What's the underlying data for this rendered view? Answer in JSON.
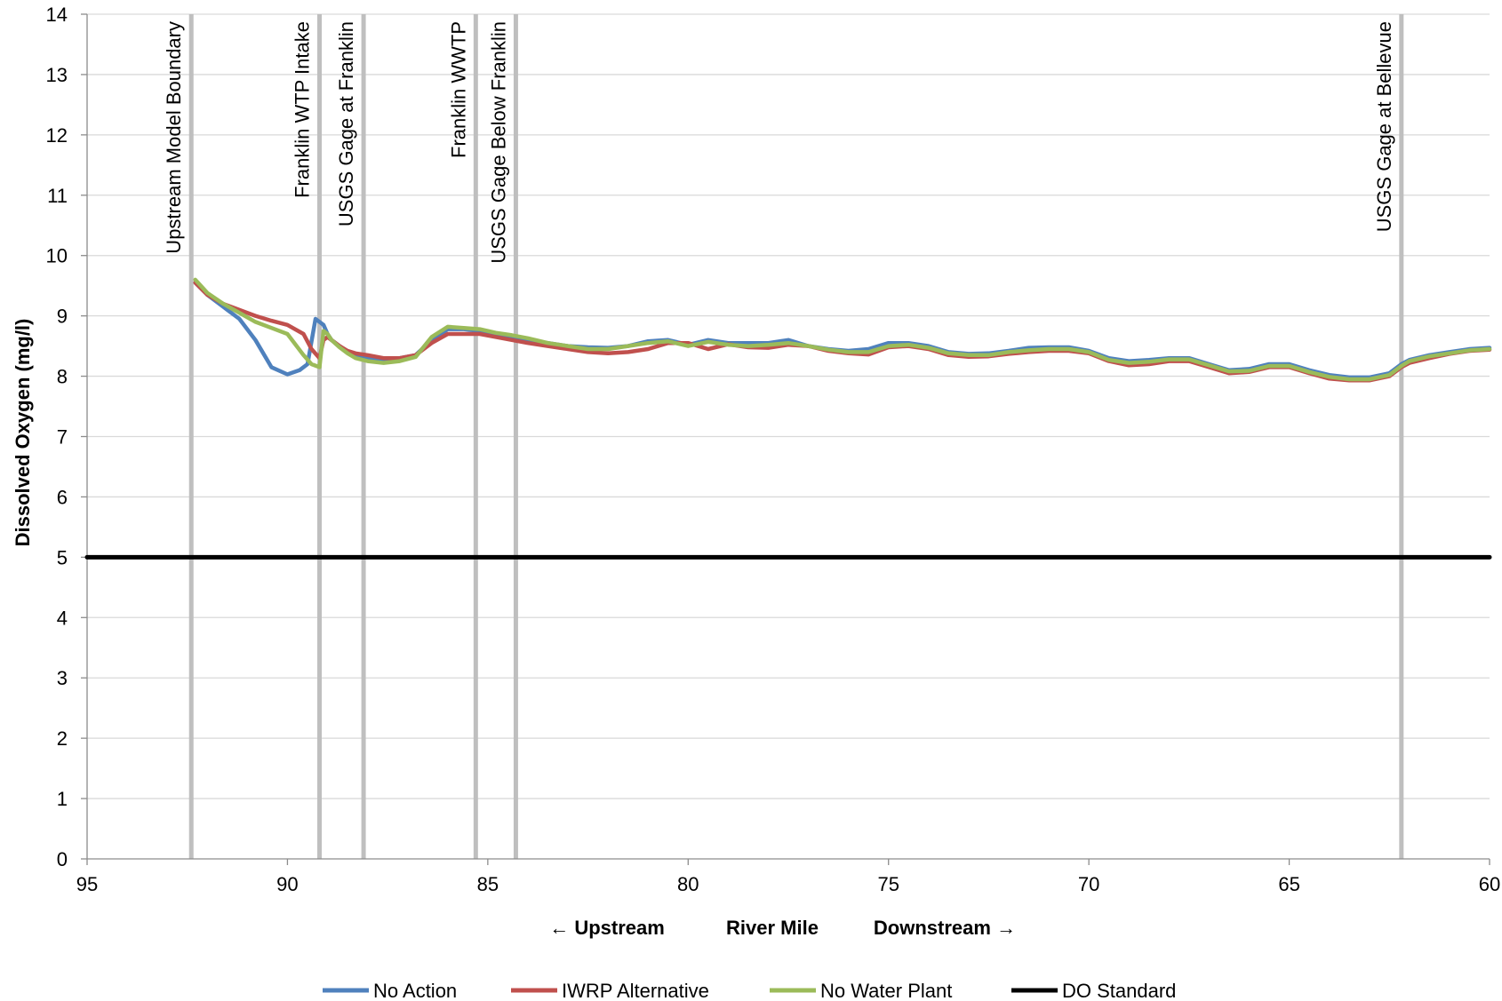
{
  "chart_data": {
    "type": "line",
    "ylabel": "Dissolved Oxygen (mg/l)",
    "xlabel_parts": [
      "← Upstream",
      "River Mile",
      "Downstream →"
    ],
    "xlim": [
      95,
      60
    ],
    "ylim": [
      0,
      14
    ],
    "x_ticks": [
      95,
      90,
      85,
      80,
      75,
      70,
      65,
      60
    ],
    "y_ticks": [
      0,
      1,
      2,
      3,
      4,
      5,
      6,
      7,
      8,
      9,
      10,
      11,
      12,
      13,
      14
    ],
    "grid": "horizontal",
    "legend_position": "bottom",
    "reference_lines": [
      {
        "label": "Upstream Model Boundary",
        "x": 92.4
      },
      {
        "label": "Franklin WTP Intake",
        "x": 89.2
      },
      {
        "label": "USGS Gage at Franklin",
        "x": 88.1
      },
      {
        "label": "Franklin WWTP",
        "x": 85.3
      },
      {
        "label": "USGS Gage Below Franklin",
        "x": 84.3
      },
      {
        "label": "USGS Gage at Bellevue",
        "x": 62.2
      }
    ],
    "series": [
      {
        "name": "No Action",
        "color": "#4f81bd",
        "x": [
          92.3,
          92.0,
          91.6,
          91.2,
          90.8,
          90.4,
          90.0,
          89.7,
          89.5,
          89.3,
          89.1,
          89.0,
          88.9,
          88.7,
          88.5,
          88.3,
          88.0,
          87.6,
          87.2,
          86.8,
          86.4,
          86.0,
          85.6,
          85.2,
          84.8,
          84.4,
          84.0,
          83.5,
          83.0,
          82.5,
          82.0,
          81.5,
          81.0,
          80.5,
          80.0,
          79.5,
          79.0,
          78.5,
          78.0,
          77.5,
          77.0,
          76.5,
          76.0,
          75.5,
          75.0,
          74.5,
          74.0,
          73.5,
          73.0,
          72.5,
          72.0,
          71.5,
          71.0,
          70.5,
          70.0,
          69.5,
          69.0,
          68.5,
          68.0,
          67.5,
          67.0,
          66.5,
          66.0,
          65.5,
          65.0,
          64.5,
          64.0,
          63.5,
          63.0,
          62.5,
          62.2,
          62.0,
          61.5,
          61.0,
          60.5,
          60.0
        ],
        "y": [
          9.55,
          9.35,
          9.15,
          8.95,
          8.6,
          8.15,
          8.03,
          8.1,
          8.2,
          8.95,
          8.85,
          8.7,
          8.6,
          8.5,
          8.4,
          8.35,
          8.3,
          8.28,
          8.3,
          8.35,
          8.6,
          8.78,
          8.78,
          8.75,
          8.7,
          8.65,
          8.6,
          8.55,
          8.5,
          8.48,
          8.47,
          8.5,
          8.58,
          8.6,
          8.52,
          8.6,
          8.55,
          8.55,
          8.55,
          8.6,
          8.5,
          8.45,
          8.42,
          8.45,
          8.55,
          8.55,
          8.5,
          8.4,
          8.37,
          8.38,
          8.42,
          8.47,
          8.48,
          8.48,
          8.42,
          8.3,
          8.25,
          8.27,
          8.3,
          8.3,
          8.2,
          8.1,
          8.12,
          8.2,
          8.2,
          8.1,
          8.02,
          7.98,
          7.98,
          8.05,
          8.2,
          8.27,
          8.35,
          8.4,
          8.45,
          8.47
        ]
      },
      {
        "name": "IWRP Alternative",
        "color": "#c0504d",
        "x": [
          92.3,
          92.0,
          91.6,
          91.2,
          90.8,
          90.4,
          90.0,
          89.6,
          89.4,
          89.2,
          89.1,
          89.0,
          88.9,
          88.7,
          88.5,
          88.3,
          88.0,
          87.6,
          87.2,
          86.8,
          86.4,
          86.0,
          85.6,
          85.2,
          84.8,
          84.4,
          84.0,
          83.5,
          83.0,
          82.5,
          82.0,
          81.5,
          81.0,
          80.5,
          80.0,
          79.5,
          79.0,
          78.5,
          78.0,
          77.5,
          77.0,
          76.5,
          76.0,
          75.5,
          75.0,
          74.5,
          74.0,
          73.5,
          73.0,
          72.5,
          72.0,
          71.5,
          71.0,
          70.5,
          70.0,
          69.5,
          69.0,
          68.5,
          68.0,
          67.5,
          67.0,
          66.5,
          66.0,
          65.5,
          65.0,
          64.5,
          64.0,
          63.5,
          63.0,
          62.5,
          62.2,
          62.0,
          61.5,
          61.0,
          60.5,
          60.0
        ],
        "y": [
          9.55,
          9.35,
          9.2,
          9.1,
          9.0,
          8.92,
          8.85,
          8.7,
          8.45,
          8.3,
          8.6,
          8.65,
          8.6,
          8.5,
          8.42,
          8.38,
          8.35,
          8.3,
          8.3,
          8.35,
          8.55,
          8.7,
          8.7,
          8.7,
          8.65,
          8.6,
          8.55,
          8.5,
          8.45,
          8.4,
          8.38,
          8.4,
          8.45,
          8.55,
          8.55,
          8.45,
          8.53,
          8.48,
          8.47,
          8.52,
          8.5,
          8.42,
          8.38,
          8.36,
          8.48,
          8.5,
          8.45,
          8.35,
          8.32,
          8.33,
          8.37,
          8.4,
          8.42,
          8.42,
          8.38,
          8.25,
          8.18,
          8.2,
          8.25,
          8.25,
          8.15,
          8.05,
          8.07,
          8.15,
          8.15,
          8.05,
          7.96,
          7.93,
          7.93,
          8.0,
          8.15,
          8.22,
          8.3,
          8.37,
          8.42,
          8.44
        ]
      },
      {
        "name": "No Water Plant",
        "color": "#9bbb59",
        "x": [
          92.3,
          92.0,
          91.6,
          91.2,
          90.8,
          90.4,
          90.0,
          89.6,
          89.4,
          89.2,
          89.1,
          89.0,
          88.9,
          88.7,
          88.5,
          88.3,
          88.0,
          87.6,
          87.2,
          86.8,
          86.4,
          86.0,
          85.6,
          85.2,
          84.8,
          84.4,
          84.0,
          83.5,
          83.0,
          82.5,
          82.0,
          81.5,
          81.0,
          80.5,
          80.0,
          79.5,
          79.0,
          78.5,
          78.0,
          77.5,
          77.0,
          76.5,
          76.0,
          75.5,
          75.0,
          74.5,
          74.0,
          73.5,
          73.0,
          72.5,
          72.0,
          71.5,
          71.0,
          70.5,
          70.0,
          69.5,
          69.0,
          68.5,
          68.0,
          67.5,
          67.0,
          66.5,
          66.0,
          65.5,
          65.0,
          64.5,
          64.0,
          63.5,
          63.0,
          62.5,
          62.2,
          62.0,
          61.5,
          61.0,
          60.5,
          60.0
        ],
        "y": [
          9.6,
          9.38,
          9.2,
          9.05,
          8.9,
          8.8,
          8.7,
          8.35,
          8.2,
          8.15,
          8.75,
          8.7,
          8.6,
          8.48,
          8.38,
          8.3,
          8.25,
          8.22,
          8.25,
          8.32,
          8.65,
          8.82,
          8.8,
          8.78,
          8.72,
          8.68,
          8.63,
          8.55,
          8.5,
          8.45,
          8.45,
          8.5,
          8.55,
          8.58,
          8.5,
          8.57,
          8.52,
          8.5,
          8.52,
          8.55,
          8.5,
          8.44,
          8.4,
          8.4,
          8.5,
          8.52,
          8.47,
          8.38,
          8.35,
          8.35,
          8.4,
          8.43,
          8.45,
          8.45,
          8.4,
          8.27,
          8.22,
          8.24,
          8.28,
          8.28,
          8.18,
          8.08,
          8.09,
          8.17,
          8.17,
          8.07,
          7.99,
          7.95,
          7.95,
          8.02,
          8.17,
          8.25,
          8.33,
          8.38,
          8.43,
          8.45
        ]
      },
      {
        "name": "DO Standard",
        "color": "#000000",
        "x": [
          95,
          60
        ],
        "y": [
          5,
          5
        ]
      }
    ]
  }
}
